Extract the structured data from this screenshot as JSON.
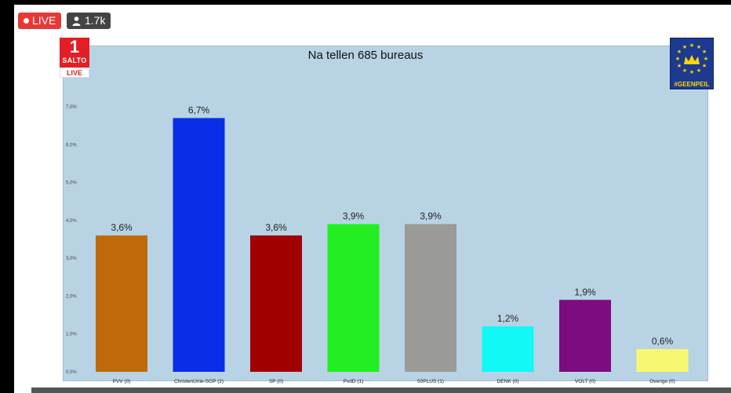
{
  "stream": {
    "live_label": "LIVE",
    "viewer_count": "1.7k"
  },
  "logos": {
    "left": {
      "number": "1",
      "name": "SALTO",
      "tag": "LIVE"
    },
    "right": {
      "hashtag": "#GEENPEIL"
    }
  },
  "colors": {
    "live_red": "#e53935",
    "chart_background": "#b8d3e4",
    "salto_red": "#e31e24",
    "geenpeil_blue": "#1c3a8f",
    "geenpeil_yellow": "#ffd400"
  },
  "chart_data": {
    "type": "bar",
    "title": "Na tellen 685 bureaus",
    "categories": [
      "PVV (0)",
      "ChristenUnie-SGP (2)",
      "SP (0)",
      "PvdD (1)",
      "50PLUS (1)",
      "DENK (0)",
      "VOLT (0)",
      "Overige (0)"
    ],
    "values": [
      3.6,
      6.7,
      3.6,
      3.9,
      3.9,
      1.2,
      1.9,
      0.6
    ],
    "value_labels": [
      "3,6%",
      "6,7%",
      "3,6%",
      "3,9%",
      "3,9%",
      "1,2%",
      "1,9%",
      "0,6%"
    ],
    "bar_colors": [
      "#c0690a",
      "#0a2ee8",
      "#a00000",
      "#22ee22",
      "#9a9a96",
      "#12f8f4",
      "#7c0c80",
      "#f8f870"
    ],
    "y_ticks": [
      "0,0%",
      "1,0%",
      "2,0%",
      "3,0%",
      "4,0%",
      "5,0%",
      "6,0%",
      "7,0%"
    ],
    "ylim": [
      0,
      7
    ],
    "xlabel": "",
    "ylabel": "",
    "grid": false,
    "legend": "none"
  }
}
